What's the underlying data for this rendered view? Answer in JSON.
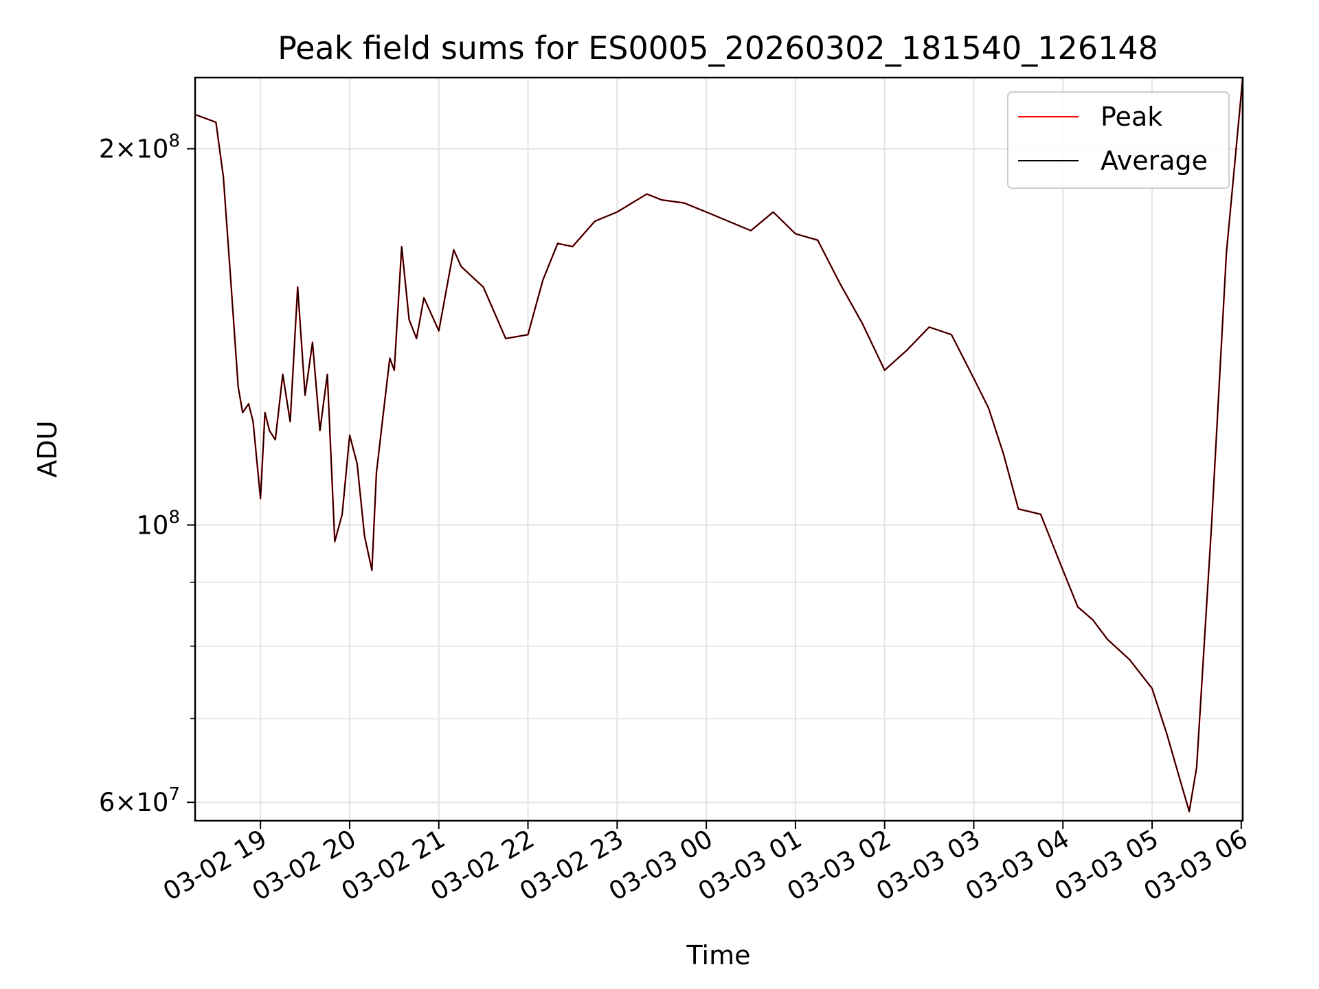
{
  "chart_data": {
    "type": "line",
    "title": "Peak field sums for ES0005_20260302_181540_126148",
    "xlabel": "Time",
    "ylabel": "ADU",
    "yscale": "log",
    "xlim": [
      "2026-03-02 18:16",
      "2026-03-03 06:01"
    ],
    "ylim": [
      58000000,
      228000000
    ],
    "grid": true,
    "legend_position": "top-right",
    "x_ticks": [
      "03-02 19",
      "03-02 20",
      "03-02 21",
      "03-02 22",
      "03-02 23",
      "03-03 00",
      "03-03 01",
      "03-03 02",
      "03-03 03",
      "03-03 04",
      "03-03 05",
      "03-03 06"
    ],
    "y_ticks": [
      {
        "value": 60000000,
        "mantissa": "6",
        "base": "10",
        "exp": "7"
      },
      {
        "value": 100000000,
        "mantissa": "",
        "base": "10",
        "exp": "8"
      },
      {
        "value": 200000000,
        "mantissa": "2",
        "base": "10",
        "exp": "8"
      }
    ],
    "y_minor_ticks": [
      70000000,
      80000000,
      90000000
    ],
    "x": [
      "2026-03-02 18:16",
      "2026-03-02 18:30",
      "2026-03-02 18:35",
      "2026-03-02 18:40",
      "2026-03-02 18:45",
      "2026-03-02 18:48",
      "2026-03-02 18:52",
      "2026-03-02 18:55",
      "2026-03-02 19:00",
      "2026-03-02 19:03",
      "2026-03-02 19:06",
      "2026-03-02 19:10",
      "2026-03-02 19:15",
      "2026-03-02 19:20",
      "2026-03-02 19:25",
      "2026-03-02 19:30",
      "2026-03-02 19:35",
      "2026-03-02 19:40",
      "2026-03-02 19:45",
      "2026-03-02 19:50",
      "2026-03-02 19:55",
      "2026-03-02 20:00",
      "2026-03-02 20:05",
      "2026-03-02 20:10",
      "2026-03-02 20:15",
      "2026-03-02 20:18",
      "2026-03-02 20:22",
      "2026-03-02 20:27",
      "2026-03-02 20:30",
      "2026-03-02 20:35",
      "2026-03-02 20:40",
      "2026-03-02 20:45",
      "2026-03-02 20:50",
      "2026-03-02 21:00",
      "2026-03-02 21:10",
      "2026-03-02 21:15",
      "2026-03-02 21:30",
      "2026-03-02 21:45",
      "2026-03-02 22:00",
      "2026-03-02 22:10",
      "2026-03-02 22:20",
      "2026-03-02 22:30",
      "2026-03-02 22:45",
      "2026-03-02 23:00",
      "2026-03-02 23:20",
      "2026-03-02 23:30",
      "2026-03-02 23:45",
      "2026-03-03 00:00",
      "2026-03-03 00:30",
      "2026-03-03 00:45",
      "2026-03-03 01:00",
      "2026-03-03 01:15",
      "2026-03-03 01:30",
      "2026-03-03 01:45",
      "2026-03-03 02:00",
      "2026-03-03 02:15",
      "2026-03-03 02:30",
      "2026-03-03 02:45",
      "2026-03-03 03:00",
      "2026-03-03 03:10",
      "2026-03-03 03:20",
      "2026-03-03 03:30",
      "2026-03-03 03:45",
      "2026-03-03 04:00",
      "2026-03-03 04:10",
      "2026-03-03 04:20",
      "2026-03-03 04:30",
      "2026-03-03 04:45",
      "2026-03-03 05:00",
      "2026-03-03 05:10",
      "2026-03-03 05:18",
      "2026-03-03 05:25",
      "2026-03-03 05:30",
      "2026-03-03 05:40",
      "2026-03-03 05:50",
      "2026-03-03 06:01"
    ],
    "series": [
      {
        "name": "Peak",
        "color": "#ff0000",
        "values": [
          213000000,
          210000000,
          190000000,
          157000000,
          129000000,
          123000000,
          125000000,
          121000000,
          105000000,
          123000000,
          119000000,
          117000000,
          132000000,
          121000000,
          155000000,
          127000000,
          140000000,
          119000000,
          132000000,
          97000000,
          102000000,
          118000000,
          112000000,
          98000000,
          92000000,
          110000000,
          121000000,
          136000000,
          133000000,
          167000000,
          146000000,
          141000000,
          152000000,
          143000000,
          166000000,
          161000000,
          155000000,
          141000000,
          142000000,
          157000000,
          168000000,
          167000000,
          175000000,
          178000000,
          184000000,
          182000000,
          181000000,
          178000000,
          172000000,
          178000000,
          171000000,
          169000000,
          156000000,
          145000000,
          133000000,
          138000000,
          144000000,
          142000000,
          131000000,
          124000000,
          114000000,
          103000000,
          102000000,
          92000000,
          86000000,
          84000000,
          81000000,
          78000000,
          74000000,
          68000000,
          63000000,
          59000000,
          64000000,
          100000000,
          165000000,
          228000000
        ]
      },
      {
        "name": "Average",
        "color": "#000000",
        "values": [
          213000000,
          210000000,
          190000000,
          157000000,
          129000000,
          123000000,
          125000000,
          121000000,
          105000000,
          123000000,
          119000000,
          117000000,
          132000000,
          121000000,
          155000000,
          127000000,
          140000000,
          119000000,
          132000000,
          97000000,
          102000000,
          118000000,
          112000000,
          98000000,
          92000000,
          110000000,
          121000000,
          136000000,
          133000000,
          167000000,
          146000000,
          141000000,
          152000000,
          143000000,
          166000000,
          161000000,
          155000000,
          141000000,
          142000000,
          157000000,
          168000000,
          167000000,
          175000000,
          178000000,
          184000000,
          182000000,
          181000000,
          178000000,
          172000000,
          178000000,
          171000000,
          169000000,
          156000000,
          145000000,
          133000000,
          138000000,
          144000000,
          142000000,
          131000000,
          124000000,
          114000000,
          103000000,
          102000000,
          92000000,
          86000000,
          84000000,
          81000000,
          78000000,
          74000000,
          68000000,
          63000000,
          59000000,
          64000000,
          100000000,
          165000000,
          228000000
        ]
      }
    ]
  }
}
